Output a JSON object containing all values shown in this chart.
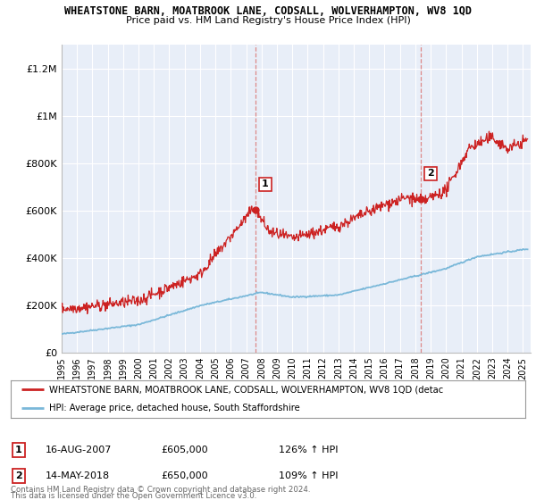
{
  "title": "WHEATSTONE BARN, MOATBROOK LANE, CODSALL, WOLVERHAMPTON, WV8 1QD",
  "subtitle": "Price paid vs. HM Land Registry's House Price Index (HPI)",
  "legend_line1": "WHEATSTONE BARN, MOATBROOK LANE, CODSALL, WOLVERHAMPTON, WV8 1QD (detac",
  "legend_line2": "HPI: Average price, detached house, South Staffordshire",
  "footer1": "Contains HM Land Registry data © Crown copyright and database right 2024.",
  "footer2": "This data is licensed under the Open Government Licence v3.0.",
  "annotation1_date": "16-AUG-2007",
  "annotation1_price": "£605,000",
  "annotation1_hpi": "126% ↑ HPI",
  "annotation2_date": "14-MAY-2018",
  "annotation2_price": "£650,000",
  "annotation2_hpi": "109% ↑ HPI",
  "sale1_x": 2007.62,
  "sale1_y": 605000,
  "sale2_x": 2018.37,
  "sale2_y": 650000,
  "vline1_x": 2007.62,
  "vline2_x": 2018.37,
  "xmin": 1995,
  "xmax": 2025.5,
  "ymin": 0,
  "ymax": 1300000,
  "yticks": [
    0,
    200000,
    400000,
    600000,
    800000,
    1000000,
    1200000
  ],
  "ytick_labels": [
    "£0",
    "£200K",
    "£400K",
    "£600K",
    "£800K",
    "£1M",
    "£1.2M"
  ],
  "hpi_color": "#7ab8d9",
  "price_color": "#cc2222",
  "vline_color": "#dd8888",
  "background_plot": "#e8eef8",
  "background_fig": "#ffffff",
  "grid_color": "#ffffff"
}
